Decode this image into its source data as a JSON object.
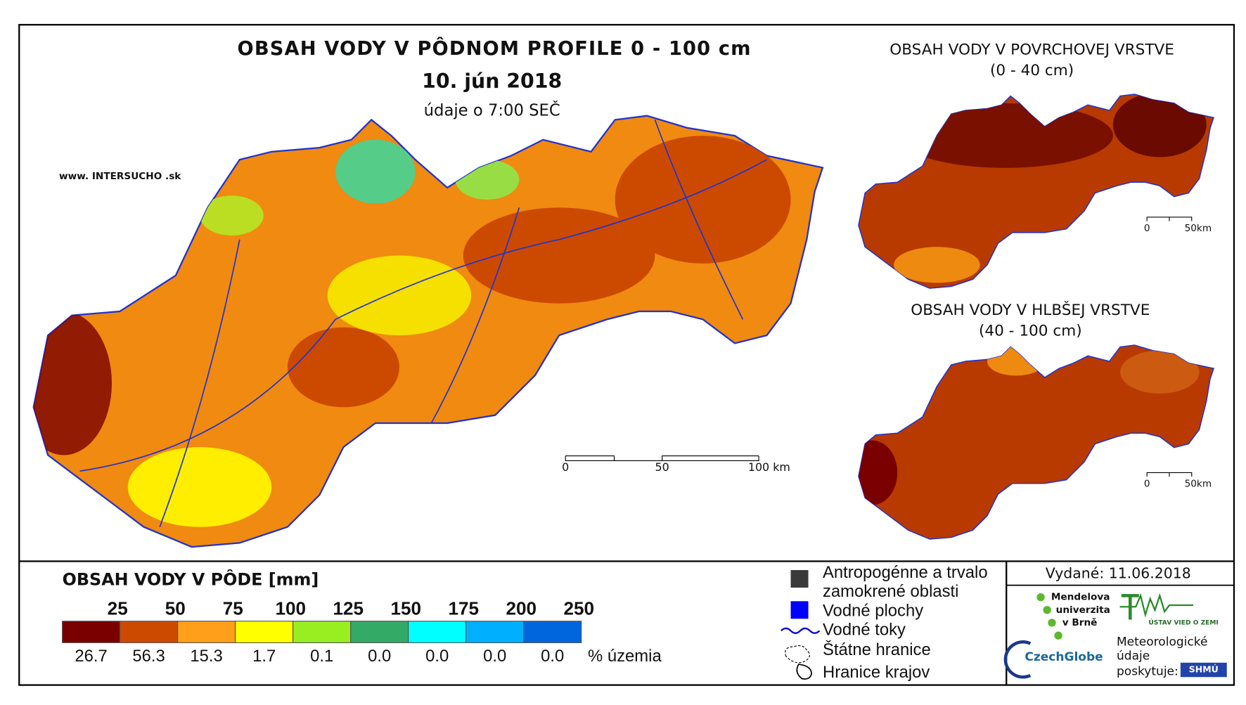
{
  "main_map": {
    "title": "OBSAH VODY V PÔDNOM PROFILE 0 - 100 cm",
    "date": "10. jún 2018",
    "time_note": "údaje o 7:00 SEČ",
    "website": "www. INTERSUCHO .sk",
    "scale": [
      "0",
      "50",
      "100 km"
    ]
  },
  "surface_map": {
    "title": "OBSAH VODY V POVRCHOVEJ VRSTVE",
    "subtitle": "(0 - 40 cm)",
    "scale": [
      "0",
      "50km"
    ]
  },
  "deep_map": {
    "title": "OBSAH VODY V HLBŠEJ VRSTVE",
    "subtitle": "(40 - 100 cm)",
    "scale": [
      "0",
      "50km"
    ]
  },
  "legend": {
    "title": "OBSAH VODY V PÔDE [mm]",
    "thresholds": [
      25,
      50,
      75,
      100,
      125,
      150,
      175,
      200,
      250
    ],
    "colors": [
      "#7a0000",
      "#cc4a00",
      "#ff9f1a",
      "#ffff00",
      "#99ee22",
      "#33aa66",
      "#00ffff",
      "#00b0ff",
      "#0066dd"
    ],
    "shares": [
      "26.7",
      "56.3",
      "15.3",
      "1.7",
      "0.1",
      "0.0",
      "0.0",
      "0.0",
      "0.0"
    ],
    "unit": "% územia"
  },
  "layers": [
    "Antropogénne a trvalo",
    "zamokrené oblasti",
    "Vodné plochy",
    "Vodné toky",
    "Štátne hranice",
    "Hranice krajov"
  ],
  "issued": "Vydané: 11.06.2018",
  "logos": {
    "mendel": [
      "Mendelova",
      "univerzita",
      "v Brně"
    ],
    "czechglobe": "CzechGlobe",
    "uvz": "ÚSTAV VIED O ZEMI",
    "shmu_note": [
      "Meteorologické",
      "údaje",
      "poskytuje:"
    ],
    "shmu": "SHMÚ"
  }
}
